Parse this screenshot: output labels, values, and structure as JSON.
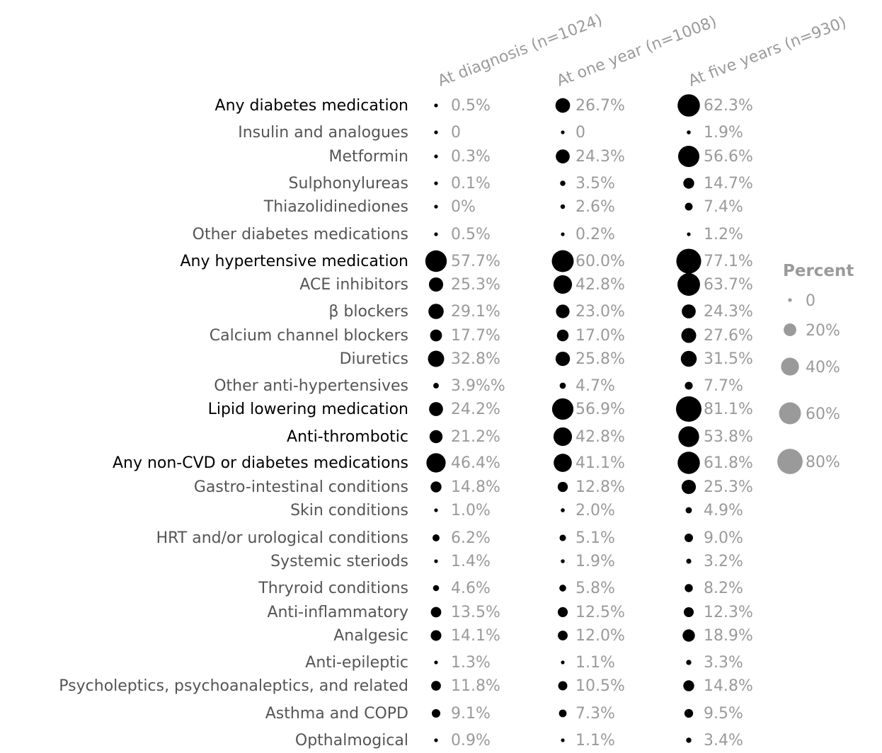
{
  "chart_data": {
    "type": "scatter",
    "columns": [
      "At diagnosis (n=1024)",
      "At one year (n=1008)",
      "At five years (n=930)"
    ],
    "rows": [
      {
        "label": "Any diabetes medication",
        "main": true,
        "values": [
          0.5,
          26.7,
          62.3
        ],
        "labels": [
          "0.5%",
          "26.7%",
          "62.3%"
        ]
      },
      {
        "label": "Insulin and analogues",
        "main": false,
        "values": [
          0,
          0,
          1.9
        ],
        "labels": [
          "0",
          "0",
          "1.9%"
        ]
      },
      {
        "label": "Metformin",
        "main": false,
        "values": [
          0.3,
          24.3,
          56.6
        ],
        "labels": [
          "0.3%",
          "24.3%",
          "56.6%"
        ]
      },
      {
        "label": "Sulphonylureas",
        "main": false,
        "values": [
          0.1,
          3.5,
          14.7
        ],
        "labels": [
          "0.1%",
          "3.5%",
          "14.7%"
        ]
      },
      {
        "label": "Thiazolidinediones",
        "main": false,
        "values": [
          0,
          2.6,
          7.4
        ],
        "labels": [
          "0%",
          "2.6%",
          "7.4%"
        ]
      },
      {
        "label": "Other diabetes medications",
        "main": false,
        "values": [
          0.5,
          0.2,
          1.2
        ],
        "labels": [
          "0.5%",
          "0.2%",
          "1.2%"
        ]
      },
      {
        "label": "Any hypertensive medication",
        "main": true,
        "values": [
          57.7,
          60.0,
          77.1
        ],
        "labels": [
          "57.7%",
          "60.0%",
          "77.1%"
        ]
      },
      {
        "label": "ACE inhibitors",
        "main": false,
        "values": [
          25.3,
          42.8,
          63.7
        ],
        "labels": [
          "25.3%",
          "42.8%",
          "63.7%"
        ]
      },
      {
        "label": "β blockers",
        "main": false,
        "values": [
          29.1,
          23.0,
          24.3
        ],
        "labels": [
          "29.1%",
          "23.0%",
          "24.3%"
        ]
      },
      {
        "label": "Calcium channel blockers",
        "main": false,
        "values": [
          17.7,
          17.0,
          27.6
        ],
        "labels": [
          "17.7%",
          "17.0%",
          "27.6%"
        ]
      },
      {
        "label": "Diuretics",
        "main": false,
        "values": [
          32.8,
          25.8,
          31.5
        ],
        "labels": [
          "32.8%",
          "25.8%",
          "31.5%"
        ]
      },
      {
        "label": "Other anti-hypertensives",
        "main": false,
        "values": [
          3.9,
          4.7,
          7.7
        ],
        "labels": [
          "3.9%%",
          "4.7%",
          "7.7%"
        ]
      },
      {
        "label": "Lipid lowering medication",
        "main": true,
        "values": [
          24.2,
          56.9,
          81.1
        ],
        "labels": [
          "24.2%",
          "56.9%",
          "81.1%"
        ]
      },
      {
        "label": "Anti-thrombotic",
        "main": true,
        "values": [
          21.2,
          42.8,
          53.8
        ],
        "labels": [
          "21.2%",
          "42.8%",
          "53.8%"
        ]
      },
      {
        "label": "Any non-CVD or diabetes medications",
        "main": true,
        "values": [
          46.4,
          41.1,
          61.8
        ],
        "labels": [
          "46.4%",
          "41.1%",
          "61.8%"
        ]
      },
      {
        "label": "Gastro-intestinal conditions",
        "main": false,
        "values": [
          14.8,
          12.8,
          25.3
        ],
        "labels": [
          "14.8%",
          "12.8%",
          "25.3%"
        ]
      },
      {
        "label": "Skin conditions",
        "main": false,
        "values": [
          1.0,
          2.0,
          4.9
        ],
        "labels": [
          "1.0%",
          "2.0%",
          "4.9%"
        ]
      },
      {
        "label": "HRT and/or urological conditions",
        "main": false,
        "values": [
          6.2,
          5.1,
          9.0
        ],
        "labels": [
          "6.2%",
          "5.1%",
          "9.0%"
        ]
      },
      {
        "label": "Systemic steriods",
        "main": false,
        "values": [
          1.4,
          1.9,
          3.2
        ],
        "labels": [
          "1.4%",
          "1.9%",
          "3.2%"
        ]
      },
      {
        "label": "Thryroid conditions",
        "main": false,
        "values": [
          4.6,
          5.8,
          8.2
        ],
        "labels": [
          "4.6%",
          "5.8%",
          "8.2%"
        ]
      },
      {
        "label": "Anti-inflammatory",
        "main": false,
        "values": [
          13.5,
          12.5,
          12.3
        ],
        "labels": [
          "13.5%",
          "12.5%",
          "12.3%"
        ]
      },
      {
        "label": "Analgesic",
        "main": false,
        "values": [
          14.1,
          12.0,
          18.9
        ],
        "labels": [
          "14.1%",
          "12.0%",
          "18.9%"
        ]
      },
      {
        "label": "Anti-epileptic",
        "main": false,
        "values": [
          1.3,
          1.1,
          3.3
        ],
        "labels": [
          "1.3%",
          "1.1%",
          "3.3%"
        ]
      },
      {
        "label": "Psycholeptics, psychoanaleptics, and related",
        "main": false,
        "values": [
          11.8,
          10.5,
          14.8
        ],
        "labels": [
          "11.8%",
          "10.5%",
          "14.8%"
        ]
      },
      {
        "label": "Asthma and COPD",
        "main": false,
        "values": [
          9.1,
          7.3,
          9.5
        ],
        "labels": [
          "9.1%",
          "7.3%",
          "9.5%"
        ]
      },
      {
        "label": "Opthalmogical",
        "main": false,
        "values": [
          0.9,
          1.1,
          3.4
        ],
        "labels": [
          "0.9%",
          "1.1%",
          "3.4%"
        ]
      }
    ],
    "legend": {
      "title": "Percent",
      "placement": "right",
      "items": [
        {
          "value": 0,
          "label": "0"
        },
        {
          "value": 20,
          "label": "20%"
        },
        {
          "value": 40,
          "label": "40%"
        },
        {
          "value": 60,
          "label": "60%"
        },
        {
          "value": 80,
          "label": "80%"
        }
      ]
    },
    "colors": {
      "dot": "#000000",
      "legend_dot": "#9a9a9a",
      "value_text": "#9a9a9a",
      "header_text": "#9a9a9a",
      "main_label": "#000000",
      "sub_label": "#555555"
    }
  }
}
